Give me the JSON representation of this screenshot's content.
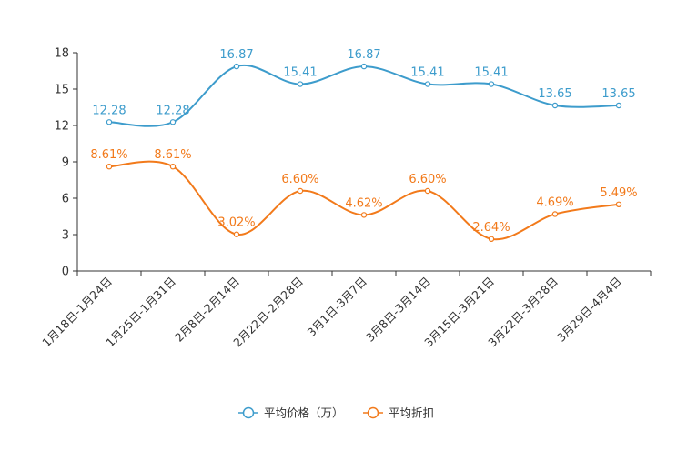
{
  "chart_data": {
    "type": "line",
    "title": "",
    "xlabel": "",
    "ylabel": "",
    "ylim": [
      0,
      18
    ],
    "yticks": [
      0,
      3,
      6,
      9,
      12,
      15,
      18
    ],
    "grid": false,
    "legend_position": "bottom-center",
    "categories": [
      "1月18日-1月24日",
      "1月25日-1月31日",
      "2月8日-2月14日",
      "2月22日-2月28日",
      "3月1日-3月7日",
      "3月8日-3月14日",
      "3月15日-3月21日",
      "3月22日-3月28日",
      "3月29日-4月4日"
    ],
    "series": [
      {
        "name": "平均价格（万）",
        "color": "#3d9ccc",
        "values": [
          12.28,
          12.28,
          16.87,
          15.41,
          16.87,
          15.41,
          15.41,
          13.65,
          13.65
        ],
        "labels": [
          "12.28",
          "12.28",
          "16.87",
          "15.41",
          "16.87",
          "15.41",
          "15.41",
          "13.65",
          "13.65"
        ]
      },
      {
        "name": "平均折扣",
        "color": "#f27a1b",
        "values": [
          8.61,
          8.61,
          3.02,
          6.6,
          4.62,
          6.6,
          2.64,
          4.69,
          5.49
        ],
        "labels": [
          "8.61%",
          "8.61%",
          "3.02%",
          "6.60%",
          "4.62%",
          "6.60%",
          "2.64%",
          "4.69%",
          "5.49%"
        ]
      }
    ]
  }
}
